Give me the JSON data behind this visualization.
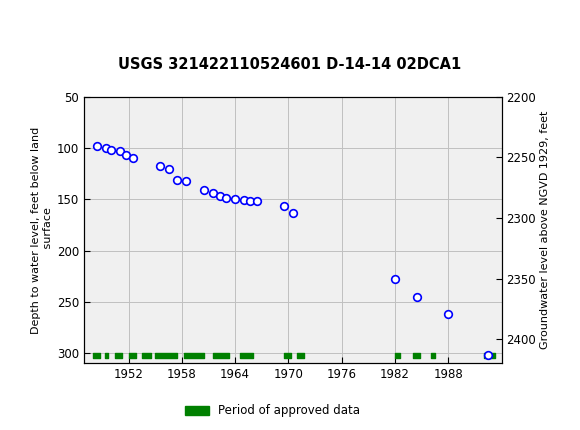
{
  "title": "USGS 321422110524601 D-14-14 02DCA1",
  "ylabel_left": "Depth to water level, feet below land\n surface",
  "ylabel_right": "Groundwater level above NGVD 1929, feet",
  "ylim_left": [
    50,
    310
  ],
  "ylim_right": [
    2200,
    2420
  ],
  "xlim": [
    1947,
    1994
  ],
  "yticks_left": [
    50,
    100,
    150,
    200,
    250,
    300
  ],
  "yticks_right": [
    2200,
    2250,
    2300,
    2350,
    2400
  ],
  "xticks": [
    1952,
    1958,
    1964,
    1970,
    1976,
    1982,
    1988
  ],
  "bg_color": "#e8e8e8",
  "header_color": "#006B3C",
  "plot_bg": "#f0f0f0",
  "data_points": [
    [
      1948.5,
      98
    ],
    [
      1949.5,
      100
    ],
    [
      1950.0,
      102
    ],
    [
      1951.0,
      103
    ],
    [
      1951.7,
      107
    ],
    [
      1952.5,
      110
    ],
    [
      1955.5,
      118
    ],
    [
      1956.5,
      120
    ],
    [
      1957.5,
      131
    ],
    [
      1958.5,
      132
    ],
    [
      1960.5,
      141
    ],
    [
      1961.5,
      144
    ],
    [
      1962.3,
      147
    ],
    [
      1963.0,
      149
    ],
    [
      1964.0,
      150
    ],
    [
      1965.0,
      151
    ],
    [
      1965.7,
      152
    ],
    [
      1966.5,
      152
    ],
    [
      1969.5,
      157
    ],
    [
      1970.5,
      163
    ],
    [
      1982.0,
      228
    ],
    [
      1984.5,
      245
    ],
    [
      1988.0,
      262
    ],
    [
      1992.5,
      302
    ]
  ],
  "approved_periods": [
    [
      1948.0,
      1948.8
    ],
    [
      1949.3,
      1949.7
    ],
    [
      1950.5,
      1951.3
    ],
    [
      1952.0,
      1952.8
    ],
    [
      1953.5,
      1954.5
    ],
    [
      1955.0,
      1957.5
    ],
    [
      1958.2,
      1960.5
    ],
    [
      1961.5,
      1963.3
    ],
    [
      1964.5,
      1966.0
    ],
    [
      1969.5,
      1970.3
    ],
    [
      1971.0,
      1971.8
    ],
    [
      1982.0,
      1982.5
    ],
    [
      1984.0,
      1984.8
    ],
    [
      1986.0,
      1986.5
    ],
    [
      1992.0,
      1993.2
    ]
  ],
  "approved_y": 302,
  "point_color": "#0000ff",
  "approved_color": "#008000",
  "grid_color": "#c0c0c0",
  "legend_label": "Period of approved data"
}
